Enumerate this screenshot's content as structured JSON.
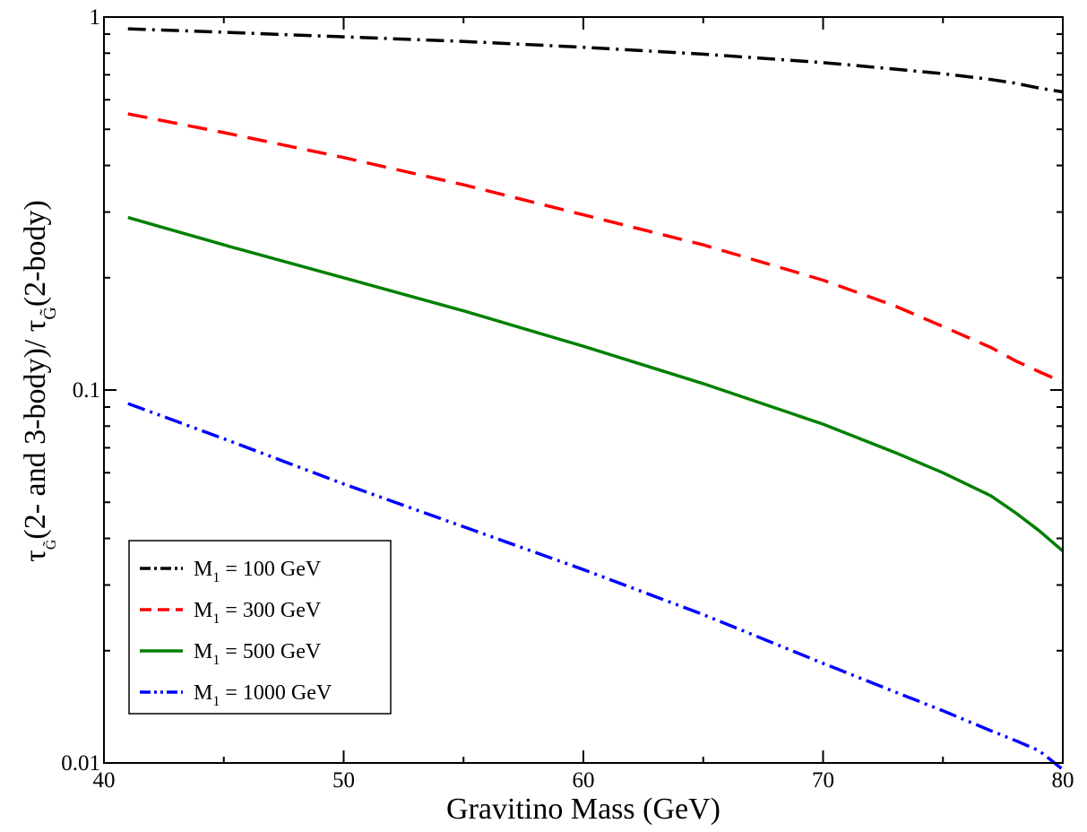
{
  "chart_data": {
    "type": "line",
    "xlabel": "Gravitino Mass (GeV)",
    "ylabel": {
      "part1": "τ",
      "sub1": "G̃",
      "part2": "(2- and 3-body)/ τ",
      "sub2": "G̃",
      "part3": "(2-body)"
    },
    "xlim": [
      40,
      80
    ],
    "ylim": [
      0.01,
      1
    ],
    "yscale": "log",
    "grid": false,
    "legend_placement": "lower-left",
    "x_ticks": [
      {
        "value": 40,
        "label": "40"
      },
      {
        "value": 50,
        "label": "50"
      },
      {
        "value": 60,
        "label": "60"
      },
      {
        "value": 70,
        "label": "70"
      },
      {
        "value": 80,
        "label": "80"
      }
    ],
    "y_ticks": [
      {
        "value": 0.01,
        "label": "0.01"
      },
      {
        "value": 0.1,
        "label": "0.1"
      },
      {
        "value": 1,
        "label": "1"
      }
    ],
    "x": [
      41,
      45,
      50,
      55,
      60,
      65,
      70,
      73,
      75,
      77,
      78,
      79,
      80
    ],
    "series": [
      {
        "name": "M",
        "sub": "1",
        "suffix": " = 100 GeV",
        "color": "#000000",
        "dash": "20,7,3,7",
        "values": [
          0.93,
          0.91,
          0.885,
          0.86,
          0.83,
          0.795,
          0.755,
          0.725,
          0.705,
          0.68,
          0.665,
          0.645,
          0.63
        ]
      },
      {
        "name": "M",
        "sub": "1",
        "suffix": " = 300 GeV",
        "color": "#ff0000",
        "dash": "22,12",
        "values": [
          0.55,
          0.49,
          0.42,
          0.355,
          0.295,
          0.245,
          0.197,
          0.168,
          0.148,
          0.13,
          0.12,
          0.112,
          0.105
        ]
      },
      {
        "name": "M",
        "sub": "1",
        "suffix": " = 500 GeV",
        "color": "#008000",
        "dash": "",
        "values": [
          0.29,
          0.245,
          0.2,
          0.163,
          0.131,
          0.104,
          0.081,
          0.068,
          0.06,
          0.052,
          0.047,
          0.042,
          0.037
        ]
      },
      {
        "name": "M",
        "sub": "1",
        "suffix": " = 1000 GeV",
        "color": "#0000ff",
        "dash": "20,6,3,6,3,6",
        "values": [
          0.092,
          0.074,
          0.056,
          0.043,
          0.033,
          0.025,
          0.0185,
          0.0155,
          0.0138,
          0.0122,
          0.0115,
          0.0108,
          0.0096
        ]
      }
    ]
  }
}
